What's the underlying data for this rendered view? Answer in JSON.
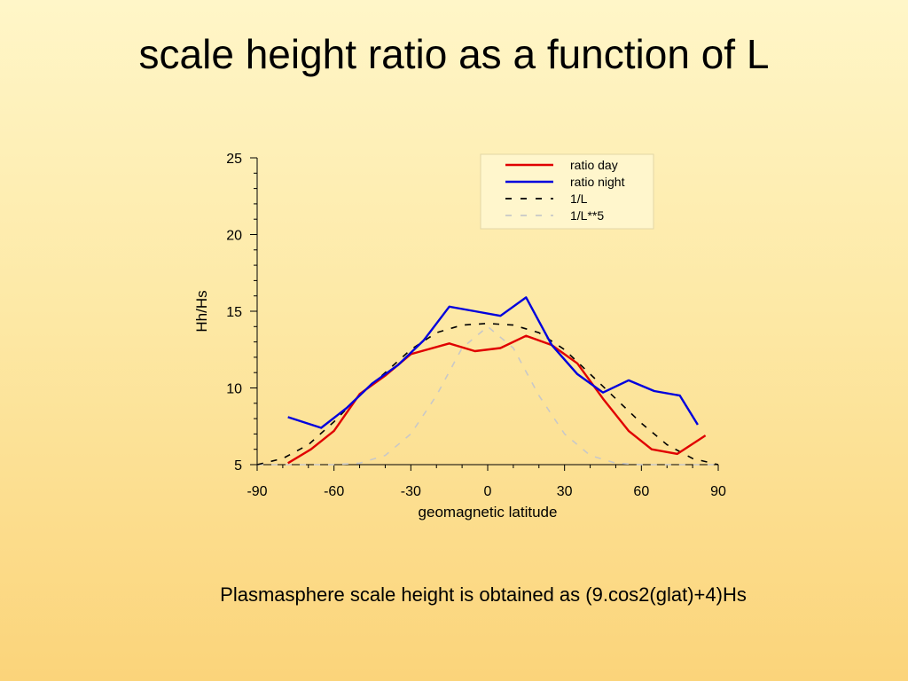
{
  "slide": {
    "title": "scale height ratio as a function of L",
    "caption": "Plasmasphere scale height is obtained as (9.cos2(glat)+4)Hs"
  },
  "chart_data": {
    "type": "line",
    "xlabel": "geomagnetic latitude",
    "ylabel": "Hh/Hs",
    "xlim": [
      -90,
      90
    ],
    "ylim": [
      5,
      25
    ],
    "xticks": [
      -90,
      -60,
      -30,
      0,
      30,
      60,
      90
    ],
    "yticks": [
      5,
      10,
      15,
      20,
      25
    ],
    "grid": false,
    "legend_position": "top-right",
    "series": [
      {
        "name": "ratio day",
        "color": "#e00000",
        "dash": "solid",
        "x": [
          -78,
          -69,
          -60,
          -50,
          -40,
          -30,
          -15,
          -5,
          5,
          15,
          25,
          35,
          45,
          55,
          64,
          74,
          85
        ],
        "y": [
          5.1,
          6.0,
          7.2,
          9.6,
          10.8,
          12.2,
          12.9,
          12.4,
          12.6,
          13.4,
          12.8,
          11.6,
          9.3,
          7.2,
          6.0,
          5.7,
          6.9
        ]
      },
      {
        "name": "ratio night",
        "color": "#0000dd",
        "dash": "solid",
        "x": [
          -78,
          -65,
          -55,
          -45,
          -35,
          -25,
          -15,
          -5,
          5,
          15,
          25,
          35,
          45,
          55,
          65,
          75,
          82
        ],
        "y": [
          8.1,
          7.4,
          8.7,
          10.3,
          11.5,
          13.1,
          15.3,
          15.0,
          14.7,
          15.9,
          12.8,
          10.9,
          9.7,
          10.5,
          9.8,
          9.5,
          7.6
        ]
      },
      {
        "name": "1/L",
        "color": "#000000",
        "dash": "dashed",
        "x": [
          -90,
          -80,
          -70,
          -60,
          -50,
          -40,
          -30,
          -20,
          -10,
          0,
          10,
          20,
          30,
          40,
          50,
          60,
          70,
          80,
          90
        ],
        "y": [
          5.0,
          5.4,
          6.3,
          7.8,
          9.5,
          11.0,
          12.5,
          13.6,
          14.1,
          14.2,
          14.1,
          13.6,
          12.5,
          10.9,
          9.3,
          7.7,
          6.3,
          5.4,
          5.0
        ]
      },
      {
        "name": "1/L**5",
        "color": "#c8c8c8",
        "dash": "dashed",
        "x": [
          -90,
          -80,
          -70,
          -60,
          -50,
          -40,
          -30,
          -20,
          -10,
          0,
          10,
          20,
          30,
          40,
          50,
          60,
          70,
          80,
          90
        ],
        "y": [
          5.0,
          5.0,
          5.0,
          5.0,
          5.1,
          5.6,
          7.0,
          9.5,
          12.6,
          14.0,
          12.6,
          9.5,
          7.0,
          5.6,
          5.1,
          5.0,
          5.0,
          5.0,
          5.0
        ]
      }
    ]
  }
}
